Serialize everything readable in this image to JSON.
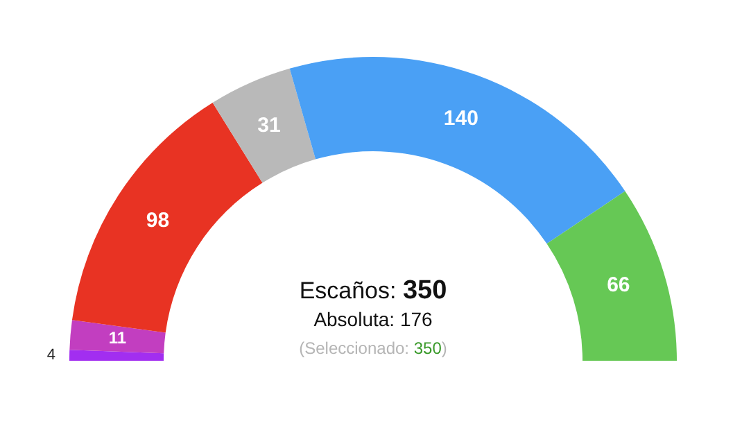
{
  "chart_data": {
    "type": "donut",
    "categories": [
      null,
      null,
      null,
      null,
      null,
      null
    ],
    "values": [
      4,
      11,
      98,
      31,
      140,
      66
    ],
    "colors": [
      "#a22ef0",
      "#c23ec0",
      "#e83323",
      "#b9b9b9",
      "#4aa0f5",
      "#66c855"
    ],
    "data_labels": true,
    "annotations": [
      "Escaños: 350",
      "Absoluta: 176",
      "(Seleccionado: 350)"
    ]
  }
}
